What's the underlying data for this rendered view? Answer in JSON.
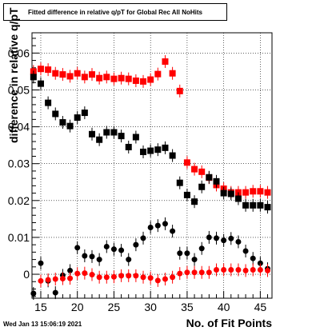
{
  "title": "Fitted difference in relative q/pT for Global Rec All NoHits",
  "datestamp": "Wed Jan 13 15:06:19 2021",
  "chart_data": {
    "type": "scatter",
    "title": "Fitted difference in relative q/pT for Global Rec All NoHits",
    "xlabel": "No. of Fit Points",
    "ylabel": "difference in relative q/pT",
    "xlim": [
      13.8,
      46.6
    ],
    "ylim": [
      -0.0065,
      0.0655
    ],
    "xticks": [
      15,
      20,
      25,
      30,
      35,
      40,
      45
    ],
    "yticks": [
      0,
      0.01,
      0.02,
      0.03,
      0.04,
      0.05,
      0.06
    ],
    "ytick_labels": [
      "0",
      "0.01",
      "0.02",
      "0.03",
      "0.04",
      "0.05",
      "0.06"
    ],
    "grid": true,
    "series": [
      {
        "marker": "square",
        "color": "#ff0000",
        "x": [
          14,
          15,
          16,
          17,
          18,
          19,
          20,
          21,
          22,
          23,
          24,
          25,
          26,
          27,
          28,
          29,
          30,
          31,
          32,
          33,
          34,
          35,
          36,
          37,
          38,
          39,
          40,
          41,
          42,
          43,
          44,
          45,
          46
        ],
        "y": [
          0.055,
          0.0557,
          0.0555,
          0.0545,
          0.0542,
          0.0537,
          0.0545,
          0.0535,
          0.0542,
          0.0532,
          0.0535,
          0.053,
          0.0532,
          0.053,
          0.0525,
          0.0523,
          0.0528,
          0.0543,
          0.0577,
          0.0545,
          0.0497,
          0.0303,
          0.0285,
          0.0278,
          0.0262,
          0.0242,
          0.0232,
          0.0222,
          0.0222,
          0.0222,
          0.0225,
          0.0225,
          0.0222
        ]
      },
      {
        "marker": "square",
        "color": "#000000",
        "x": [
          14,
          15,
          16,
          17,
          18,
          19,
          20,
          21,
          22,
          23,
          24,
          25,
          26,
          27,
          28,
          29,
          30,
          31,
          32,
          33,
          34,
          35,
          36,
          37,
          38,
          39,
          40,
          41,
          42,
          43,
          44,
          45,
          46
        ],
        "y": [
          0.0535,
          0.0517,
          0.0465,
          0.0435,
          0.0412,
          0.0402,
          0.0425,
          0.0438,
          0.038,
          0.0365,
          0.0385,
          0.0385,
          0.0375,
          0.0345,
          0.0372,
          0.0332,
          0.0335,
          0.0338,
          0.0343,
          0.0322,
          0.0248,
          0.0215,
          0.0197,
          0.0237,
          0.0263,
          0.0252,
          0.022,
          0.0218,
          0.0205,
          0.0187,
          0.0187,
          0.0187,
          0.0182
        ]
      },
      {
        "marker": "circle",
        "color": "#000000",
        "x": [
          14,
          15,
          16,
          17,
          18,
          19,
          20,
          21,
          22,
          23,
          24,
          25,
          26,
          27,
          28,
          29,
          30,
          31,
          32,
          33,
          34,
          35,
          36,
          37,
          38,
          39,
          40,
          41,
          42,
          43,
          44,
          45,
          46
        ],
        "y": [
          -0.0052,
          0.003,
          -0.0018,
          -0.005,
          -0.0003,
          0.001,
          0.0072,
          0.005,
          0.0048,
          0.004,
          0.0075,
          0.0068,
          0.0065,
          0.004,
          0.008,
          0.0098,
          0.0127,
          0.0132,
          0.0137,
          0.0117,
          0.0057,
          0.0057,
          0.004,
          0.007,
          0.01,
          0.0098,
          0.0092,
          0.0097,
          0.0088,
          0.0063,
          0.0043,
          0.003,
          0.0015
        ]
      },
      {
        "marker": "circle",
        "color": "#ff0000",
        "x": [
          15,
          16,
          17,
          18,
          19,
          20,
          21,
          22,
          23,
          24,
          25,
          26,
          27,
          28,
          29,
          30,
          31,
          32,
          33,
          34,
          35,
          36,
          37,
          38,
          39,
          40,
          41,
          42,
          43,
          44,
          45,
          46
        ],
        "y": [
          -0.0018,
          -0.0015,
          -0.0013,
          -0.0012,
          -0.0011,
          0.0002,
          0.0003,
          -0.0001,
          -0.0008,
          -0.0008,
          -0.0007,
          -0.0004,
          -0.0004,
          -0.0004,
          -0.0008,
          -0.001,
          -0.0017,
          -0.0013,
          -0.0008,
          0.0002,
          0.0005,
          0.0005,
          0.0005,
          0.0005,
          0.0012,
          0.0012,
          0.0012,
          0.0012,
          0.001,
          0.0012,
          0.0012,
          0.001
        ]
      }
    ]
  }
}
